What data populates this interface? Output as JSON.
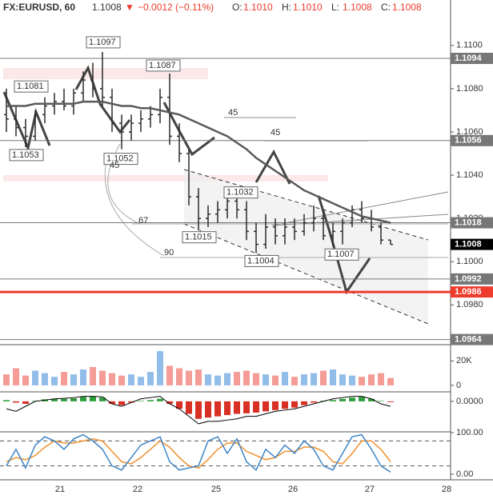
{
  "chart_data": [
    {
      "type": "ohlc",
      "symbol": "FX:EURUSD, 60",
      "last": "1.1008",
      "change": "−0.0012 (−0.11%)",
      "ohlc_labels": [
        {
          "key": "O:",
          "value": "1.1010"
        },
        {
          "key": "H:",
          "value": "1.1010"
        },
        {
          "key": "L:",
          "value": "1.1008"
        },
        {
          "key": "C:",
          "value": "1.1008"
        }
      ],
      "x_labels": [
        "21",
        "22",
        "25",
        "26",
        "27",
        "28"
      ],
      "open": [
        1.1068,
        1.1066,
        1.1062,
        1.1058,
        1.1068,
        1.1072,
        1.1074,
        1.1072,
        1.1078,
        1.1084,
        1.108,
        1.1076,
        1.1064,
        1.106,
        1.1064,
        1.1066,
        1.1068,
        1.1076,
        1.1058,
        1.105,
        1.103,
        1.102,
        1.1022,
        1.1024,
        1.1028,
        1.1024,
        1.1014,
        1.1008,
        1.1016,
        1.1012,
        1.1016,
        1.1014,
        1.1018,
        1.102,
        1.1012,
        1.1014,
        1.1018,
        1.1024,
        1.102,
        1.1016,
        1.101
      ],
      "high": [
        1.108,
        1.1072,
        1.1066,
        1.107,
        1.1076,
        1.1078,
        1.108,
        1.108,
        1.1088,
        1.1092,
        1.1097,
        1.108,
        1.1068,
        1.1068,
        1.107,
        1.1072,
        1.108,
        1.1087,
        1.1064,
        1.1052,
        1.1034,
        1.1026,
        1.1028,
        1.103,
        1.1032,
        1.1028,
        1.1018,
        1.1022,
        1.102,
        1.102,
        1.102,
        1.1022,
        1.1026,
        1.1024,
        1.1018,
        1.102,
        1.1026,
        1.1028,
        1.1024,
        1.1018,
        1.101
      ],
      "low": [
        1.106,
        1.1058,
        1.1053,
        1.1056,
        1.1064,
        1.1068,
        1.107,
        1.1068,
        1.1074,
        1.1076,
        1.1072,
        1.106,
        1.1052,
        1.1056,
        1.106,
        1.1062,
        1.1064,
        1.1054,
        1.1046,
        1.1026,
        1.1015,
        1.1016,
        1.1018,
        1.102,
        1.102,
        1.101,
        1.1004,
        1.1006,
        1.1008,
        1.1008,
        1.101,
        1.1012,
        1.1014,
        1.101,
        1.1007,
        1.1008,
        1.1016,
        1.1018,
        1.1014,
        1.1008,
        1.1008
      ],
      "close": [
        1.1066,
        1.1062,
        1.1058,
        1.1068,
        1.1072,
        1.1074,
        1.1072,
        1.1078,
        1.1084,
        1.108,
        1.1076,
        1.1064,
        1.106,
        1.1064,
        1.1066,
        1.1068,
        1.1076,
        1.1058,
        1.105,
        1.103,
        1.102,
        1.1022,
        1.1024,
        1.1028,
        1.1024,
        1.1014,
        1.1008,
        1.1016,
        1.1012,
        1.1016,
        1.1014,
        1.1018,
        1.102,
        1.1012,
        1.1014,
        1.1018,
        1.1024,
        1.102,
        1.1016,
        1.101,
        1.1008
      ],
      "ma": [
        1.1072,
        1.1072,
        1.1072,
        1.1073,
        1.1073,
        1.1073,
        1.1073,
        1.1073,
        1.1074,
        1.1074,
        1.1074,
        1.1073,
        1.1072,
        1.1072,
        1.1071,
        1.1071,
        1.107,
        1.1069,
        1.1068,
        1.1066,
        1.1064,
        1.1062,
        1.106,
        1.1058,
        1.1055,
        1.1052,
        1.1048,
        1.1045,
        1.1042,
        1.1039,
        1.1036,
        1.1033,
        1.1031,
        1.1029,
        1.1027,
        1.1025,
        1.1023,
        1.1021,
        1.102,
        1.1019,
        1.1018
      ],
      "bar_color": "#2b2b2b",
      "ma_color": "#5a5a5a",
      "levels": [
        {
          "value": 1.1094,
          "color": "#777777"
        },
        {
          "value": 1.1056,
          "color": "#777777"
        },
        {
          "value": 1.1018,
          "color": "#777777"
        },
        {
          "value": 1.1008,
          "color": "#000000"
        },
        {
          "value": 1.0992,
          "color": "#777777"
        },
        {
          "value": 1.0986,
          "color": "#ef3b2c"
        },
        {
          "value": 1.0964,
          "color": "#777777"
        }
      ],
      "annotations": [
        1.1053,
        1.1081,
        1.1097,
        1.1087,
        1.1052,
        1.1032,
        1.1015,
        1.1004,
        1.1007
      ],
      "fib_labels": [
        "45",
        "45",
        "67",
        "90",
        "45"
      ],
      "ylim": [
        1.0962,
        1.1121
      ],
      "yticks": [
        {
          "value": 1.11,
          "label": "1.1100"
        },
        {
          "value": 1.108,
          "label": "1.1080"
        },
        {
          "value": 1.106,
          "label": "1.1060"
        },
        {
          "value": 1.104,
          "label": "1.1040"
        },
        {
          "value": 1.102,
          "label": "1.1020"
        },
        {
          "value": 1.1,
          "label": "1.1000"
        },
        {
          "value": 1.098,
          "label": "1.0980"
        }
      ]
    },
    {
      "type": "bar",
      "values": [
        9000,
        14000,
        8000,
        12000,
        10000,
        7000,
        11000,
        9000,
        13000,
        15000,
        12000,
        10000,
        8000,
        9000,
        7000,
        11000,
        28000,
        16000,
        14000,
        12000,
        13000,
        9000,
        8000,
        10000,
        11000,
        12000,
        10000,
        9000,
        8000,
        11000,
        7000,
        9000,
        10000,
        12000,
        13000,
        9000,
        8000,
        7000,
        9000,
        10000,
        6000
      ],
      "up_color": "#7fb2e5",
      "down_color": "#f28b82",
      "ylim": [
        -5300,
        33300
      ],
      "yticks": [
        {
          "value": 20000,
          "label": "20K"
        },
        0
      ]
    },
    {
      "type": "histogram",
      "values": [
        5e-05,
        -5e-05,
        -0.0001,
        2e-05,
        8e-05,
        0.0001,
        0.0001,
        0.00012,
        0.00018,
        0.0002,
        0.00015,
        -0.0001,
        -0.00015,
        -5e-05,
        2e-05,
        5e-05,
        0.0001,
        -0.0001,
        -0.0003,
        -0.0005,
        -0.0007,
        -0.00065,
        -0.0006,
        -0.00055,
        -0.0005,
        -0.00048,
        -0.00045,
        -0.0004,
        -0.00035,
        -0.0003,
        -0.00025,
        -0.00015,
        -5e-05,
        2e-05,
        5e-05,
        0.0001,
        0.00015,
        0.00018,
        0.0001,
        2e-05,
        -3e-05
      ],
      "line": [
        -0.0003,
        -0.0004,
        -0.0002,
        0,
        5e-05,
        0.0001,
        0.00012,
        0.00015,
        0.0002,
        0.0002,
        0.00018,
        -0.0001,
        -0.0002,
        -5e-05,
        0.0001,
        0.00015,
        0.0002,
        -0.0001,
        -0.0003,
        -0.0006,
        -0.0009,
        -0.0008,
        -0.0008,
        -0.00075,
        -0.0007,
        -0.0006,
        -0.0006,
        -0.0005,
        -0.0004,
        -0.00035,
        -0.0003,
        -0.0002,
        -0.0001,
        0,
        0.0001,
        0.00015,
        0.0002,
        0.0002,
        0.0001,
        -0.0001,
        -0.0002
      ],
      "up_color": "#2e9e3a",
      "down_color": "#d93025",
      "line_color": "#000000",
      "ylim": [
        -0.00122,
        0.00038
      ],
      "yticks": [
        {
          "value": 0,
          "label": "0.0000"
        }
      ]
    },
    {
      "type": "line",
      "series": [
        {
          "color": "#f0912f",
          "values": [
            30,
            40,
            35,
            45,
            65,
            80,
            75,
            75,
            80,
            85,
            80,
            55,
            30,
            25,
            40,
            60,
            80,
            65,
            40,
            20,
            15,
            35,
            60,
            75,
            75,
            55,
            45,
            35,
            40,
            55,
            55,
            65,
            65,
            55,
            30,
            25,
            50,
            80,
            80,
            60,
            30
          ]
        },
        {
          "color": "#3d85c6",
          "values": [
            20,
            60,
            15,
            70,
            90,
            80,
            60,
            85,
            95,
            80,
            60,
            20,
            10,
            40,
            70,
            80,
            90,
            30,
            10,
            15,
            20,
            80,
            90,
            50,
            85,
            30,
            10,
            60,
            40,
            70,
            50,
            80,
            60,
            20,
            10,
            50,
            90,
            95,
            60,
            20,
            5
          ]
        }
      ],
      "bands": [
        80,
        20
      ],
      "ylim": [
        -13.5,
        101.9
      ],
      "yticks": [
        {
          "value": 100,
          "label": "100.00"
        },
        {
          "value": 0,
          "label": "0.00"
        }
      ]
    }
  ]
}
